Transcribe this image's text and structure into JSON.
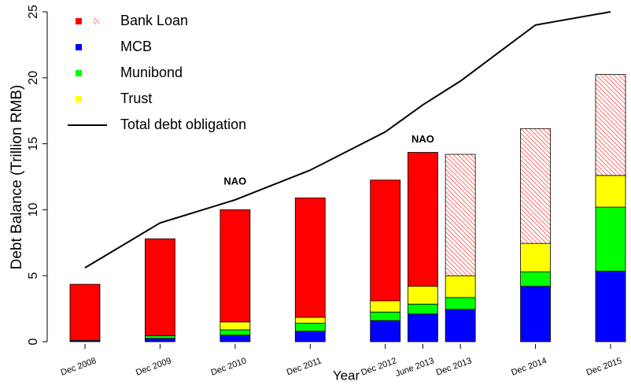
{
  "chart_data": {
    "type": "bar",
    "x_label": "Year",
    "y_label": "Debt Balance (Trillion RMB)",
    "categories": [
      "Dec 2008",
      "Dec 2009",
      "Dec 2010",
      "Dec 2011",
      "Dec 2012",
      "June 2013",
      "Dec 2013",
      "Dec 2014",
      "Dec 2015"
    ],
    "series": [
      {
        "name": "MCB",
        "color": "#0000ff",
        "values": [
          0.1,
          0.25,
          0.5,
          0.8,
          1.6,
          2.1,
          2.45,
          4.2,
          5.35
        ]
      },
      {
        "name": "Munibond",
        "color": "#00ff00",
        "values": [
          0,
          0.2,
          0.4,
          0.6,
          0.65,
          0.75,
          0.9,
          1.1,
          4.85
        ]
      },
      {
        "name": "Trust",
        "color": "#ffff00",
        "values": [
          0,
          0,
          0.6,
          0.45,
          0.85,
          1.35,
          1.65,
          2.15,
          2.4
        ]
      },
      {
        "name": "Bank Loan",
        "color": "#ff0000",
        "values": [
          4.25,
          7.35,
          8.5,
          9.05,
          9.15,
          10.15,
          9.2,
          8.7,
          7.65
        ],
        "fill": [
          "solid",
          "solid",
          "solid",
          "solid",
          "solid",
          "solid",
          "hatched",
          "hatched",
          "hatched"
        ]
      },
      {
        "name": "Total debt obligation",
        "type": "line",
        "color": "#000000",
        "values": [
          5.6,
          9.0,
          10.75,
          13.0,
          15.9,
          17.95,
          19.75,
          24.0,
          25.0
        ]
      }
    ],
    "annotations": [
      {
        "text": "NAO",
        "category": "Dec 2010",
        "y": 12.1
      },
      {
        "text": "NAO",
        "category": "June 2013",
        "y": 15.3
      }
    ],
    "ylim": [
      0,
      25
    ],
    "yticks": [
      0,
      5,
      10,
      15,
      20,
      25
    ],
    "legend": "top-left"
  }
}
